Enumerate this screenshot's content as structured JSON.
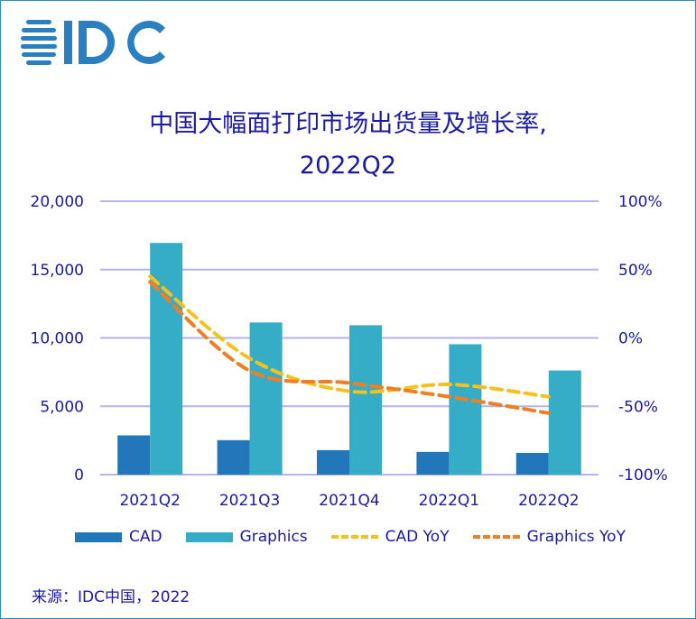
{
  "logo_text": "IDC",
  "title_line1": "中国大幅面打印市场出货量及增长率,",
  "title_line2": "2022Q2",
  "source": "来源：IDC中国，2022",
  "chart_data": {
    "type": "bar+line",
    "categories": [
      "2021Q2",
      "2021Q3",
      "2021Q4",
      "2022Q1",
      "2022Q2"
    ],
    "series": [
      {
        "name": "CAD",
        "type": "bar",
        "axis": "left",
        "color": "#2277bb",
        "values": [
          2870,
          2520,
          1790,
          1660,
          1590
        ]
      },
      {
        "name": "Graphics",
        "type": "bar",
        "axis": "left",
        "color": "#36adc7",
        "values": [
          16950,
          11130,
          10930,
          9540,
          7620
        ]
      },
      {
        "name": "CAD YoY",
        "type": "line",
        "style": "dashed",
        "axis": "right",
        "color": "#f5c11c",
        "values": [
          45,
          -15,
          -39,
          -34,
          -43
        ]
      },
      {
        "name": "Graphics YoY",
        "type": "line",
        "style": "dashed",
        "axis": "right",
        "color": "#f07e22",
        "values": [
          41,
          -24,
          -33,
          -43,
          -55
        ]
      }
    ],
    "left_axis": {
      "ylim": [
        0,
        20000
      ],
      "ticks": [
        "0",
        "5,000",
        "10,000",
        "15,000",
        "20,000"
      ]
    },
    "right_axis": {
      "ylim": [
        -100,
        100
      ],
      "ticks": [
        "-100%",
        "-50%",
        "0%",
        "50%",
        "100%"
      ]
    },
    "grid": true,
    "legend_position": "bottom"
  }
}
